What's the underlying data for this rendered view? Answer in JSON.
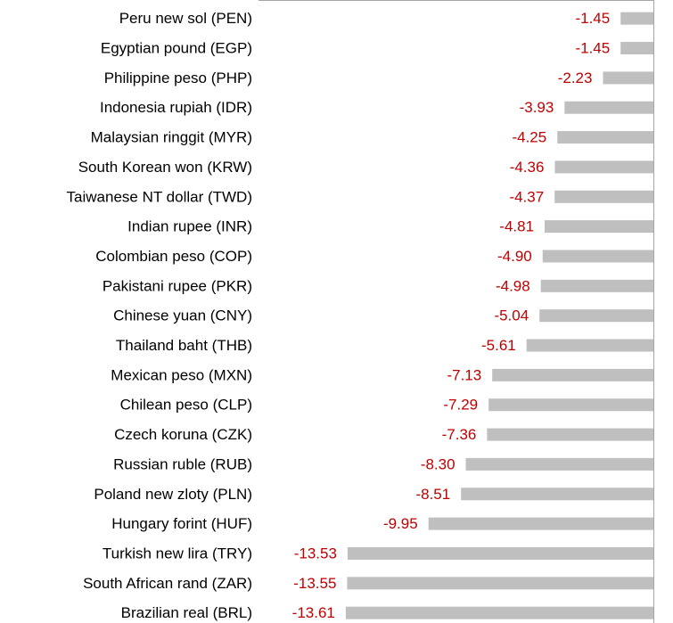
{
  "chart_data": {
    "type": "bar",
    "orientation": "horizontal",
    "categories": [
      "Peru new sol (PEN)",
      "Egyptian pound (EGP)",
      "Philippine peso (PHP)",
      "Indonesia rupiah (IDR)",
      "Malaysian ringgit (MYR)",
      "South Korean won (KRW)",
      "Taiwanese NT dollar (TWD)",
      "Indian rupee (INR)",
      "Colombian peso (COP)",
      "Pakistani rupee (PKR)",
      "Chinese yuan (CNY)",
      "Thailand baht (THB)",
      "Mexican peso (MXN)",
      "Chilean peso (CLP)",
      "Czech koruna (CZK)",
      "Russian ruble (RUB)",
      "Poland new zloty (PLN)",
      "Hungary forint (HUF)",
      "Turkish new lira (TRY)",
      "South African rand (ZAR)",
      "Brazilian real (BRL)"
    ],
    "values": [
      -1.45,
      -1.45,
      -2.23,
      -3.93,
      -4.25,
      -4.36,
      -4.37,
      -4.81,
      -4.9,
      -4.98,
      -5.04,
      -5.61,
      -7.13,
      -7.29,
      -7.36,
      -8.3,
      -8.51,
      -9.95,
      -13.53,
      -13.55,
      -13.61
    ],
    "value_labels": [
      "-1.45",
      "-1.45",
      "-2.23",
      "-3.93",
      "-4.25",
      "-4.36",
      "-4.37",
      "-4.81",
      "-4.90",
      "-4.98",
      "-5.04",
      "-5.61",
      "-7.13",
      "-7.29",
      "-7.36",
      "-8.30",
      "-8.51",
      "-9.95",
      "-13.53",
      "-13.55",
      "-13.61"
    ],
    "color": "#bfbfbf",
    "label_color": "#c00000",
    "xlim": [
      -14,
      0
    ]
  }
}
